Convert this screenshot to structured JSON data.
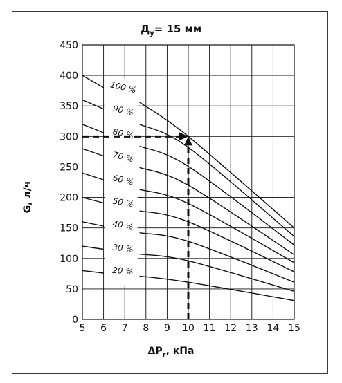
{
  "chart_data": {
    "type": "line",
    "title": {
      "main": "Д",
      "sub": "у",
      "rest": "= 15 мм"
    },
    "xlabel": {
      "main": "ΔP",
      "sub": "r",
      "rest": ", кПа"
    },
    "ylabel": "G, л/ч",
    "xlim": [
      5,
      15
    ],
    "ylim": [
      0,
      450
    ],
    "xticks": [
      5,
      6,
      7,
      8,
      9,
      10,
      11,
      12,
      13,
      14,
      15
    ],
    "yticks": [
      0,
      50,
      100,
      150,
      200,
      250,
      300,
      350,
      400,
      450
    ],
    "grid": true,
    "series": [
      {
        "name": "100 %",
        "left": [
          [
            5,
            400
          ],
          [
            6,
            380
          ]
        ],
        "main": [
          [
            7.7,
            356
          ],
          [
            10,
            300
          ],
          [
            15,
            150
          ]
        ]
      },
      {
        "name": "90 %",
        "left": [
          [
            5,
            360
          ],
          [
            6,
            345
          ]
        ],
        "main": [
          [
            7.7,
            320
          ],
          [
            10,
            282
          ],
          [
            15,
            136
          ]
        ]
      },
      {
        "name": "80 %",
        "left": [
          [
            5,
            320
          ],
          [
            6,
            306
          ]
        ],
        "main": [
          [
            7.7,
            284
          ],
          [
            10,
            251
          ],
          [
            15,
            122
          ]
        ]
      },
      {
        "name": "70 %",
        "left": [
          [
            5,
            280
          ],
          [
            6,
            268
          ]
        ],
        "main": [
          [
            7.7,
            249
          ],
          [
            10,
            220
          ],
          [
            15,
            106
          ]
        ]
      },
      {
        "name": "60 %",
        "left": [
          [
            5,
            240
          ],
          [
            6,
            229
          ]
        ],
        "main": [
          [
            7.7,
            213
          ],
          [
            10,
            190
          ],
          [
            15,
            93
          ]
        ]
      },
      {
        "name": "50 %",
        "left": [
          [
            5,
            200
          ],
          [
            6,
            191
          ]
        ],
        "main": [
          [
            7.7,
            178
          ],
          [
            10,
            160
          ],
          [
            15,
            78
          ]
        ]
      },
      {
        "name": "40 %",
        "left": [
          [
            5,
            160
          ],
          [
            6,
            153
          ]
        ],
        "main": [
          [
            7.7,
            142
          ],
          [
            10,
            128
          ],
          [
            15,
            61
          ]
        ]
      },
      {
        "name": "30 %",
        "left": [
          [
            5,
            120
          ],
          [
            6,
            115
          ]
        ],
        "main": [
          [
            7.7,
            107
          ],
          [
            10,
            96
          ],
          [
            15,
            46
          ]
        ]
      },
      {
        "name": "20 %",
        "left": [
          [
            5,
            80
          ],
          [
            6,
            76
          ]
        ],
        "main": [
          [
            7.7,
            71
          ],
          [
            10,
            61
          ],
          [
            15,
            31
          ]
        ]
      }
    ],
    "curve_labels": [
      {
        "text": "100 %",
        "x": 6.9,
        "y": 376,
        "angle": 13
      },
      {
        "text": "90 %",
        "x": 6.9,
        "y": 338,
        "angle": 13
      },
      {
        "text": "80 %",
        "x": 6.9,
        "y": 300,
        "angle": 13
      },
      {
        "text": "70 %",
        "x": 6.9,
        "y": 262,
        "angle": 13
      },
      {
        "text": "60 %",
        "x": 6.9,
        "y": 224,
        "angle": 13
      },
      {
        "text": "50 %",
        "x": 6.9,
        "y": 187,
        "angle": 10
      },
      {
        "text": "40 %",
        "x": 6.9,
        "y": 150,
        "angle": 8
      },
      {
        "text": "30 %",
        "x": 6.9,
        "y": 112,
        "angle": 6
      },
      {
        "text": "20 %",
        "x": 6.9,
        "y": 75,
        "angle": 4
      }
    ],
    "annotations": [
      {
        "type": "dashed-arrow",
        "from": [
          10,
          0
        ],
        "to": [
          10,
          300
        ]
      },
      {
        "type": "dashed-arrow",
        "from": [
          5,
          300
        ],
        "to": [
          10,
          300
        ]
      }
    ]
  }
}
